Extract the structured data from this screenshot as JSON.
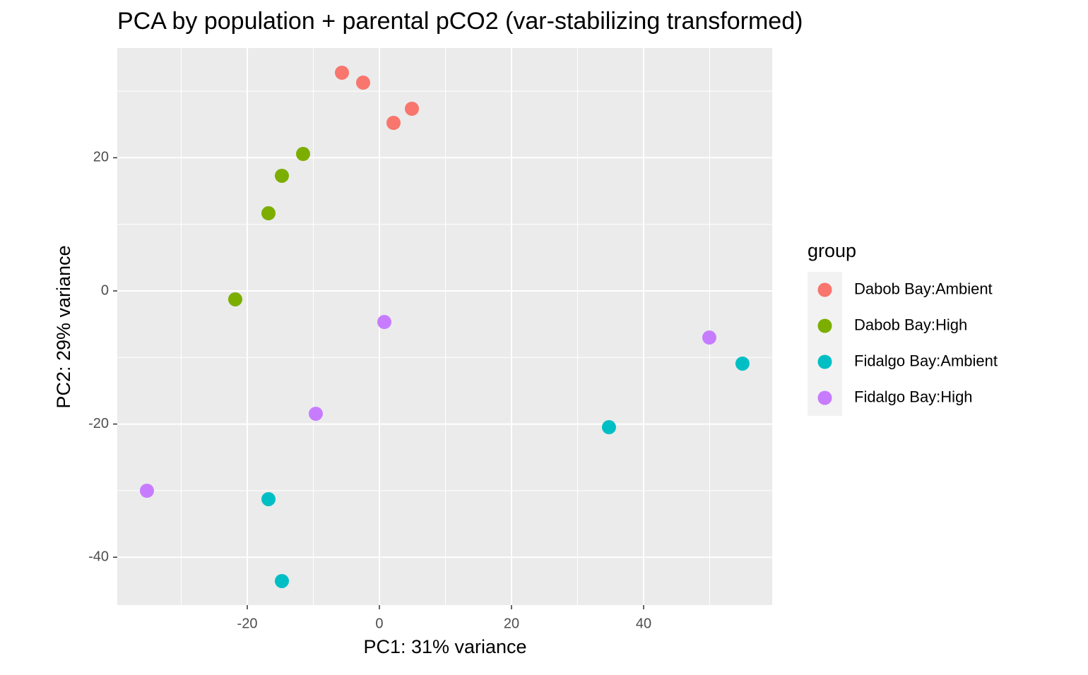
{
  "chart_data": {
    "type": "scatter",
    "title": "PCA by population + parental pCO2 (var-stabilizing transformed)",
    "x_label": "PC1: 31% variance",
    "y_label": "PC2: 29% variance",
    "legend_title": "group",
    "legend_position": "right",
    "grid": true,
    "xlim": [
      -39.68,
      59.47
    ],
    "ylim": [
      -47.19,
      36.48
    ],
    "xticks": [
      -20,
      0,
      20,
      40
    ],
    "yticks": [
      -40,
      -20,
      0,
      20
    ],
    "series": [
      {
        "name": "Dabob Bay:Ambient",
        "color": "#f8766d",
        "x": [
          -5.67,
          -2.46,
          2.14,
          4.92
        ],
        "values": [
          32.77,
          31.28,
          25.24,
          27.36
        ]
      },
      {
        "name": "Dabob Bay:High",
        "color": "#7cae00",
        "x": [
          -11.55,
          -14.76,
          -16.79,
          -21.82
        ],
        "values": [
          20.57,
          17.29,
          11.66,
          -1.27
        ]
      },
      {
        "name": "Fidalgo Bay:Ambient",
        "color": "#00bfc4",
        "x": [
          54.97,
          34.76,
          -16.79,
          -14.76
        ],
        "values": [
          -10.92,
          -20.47,
          -31.28,
          -43.58
        ]
      },
      {
        "name": "Fidalgo Bay:High",
        "color": "#c77cff",
        "x": [
          49.95,
          0.75,
          -9.63,
          -35.19
        ],
        "values": [
          -7.0,
          -4.67,
          -18.45,
          -30.01
        ]
      }
    ]
  }
}
